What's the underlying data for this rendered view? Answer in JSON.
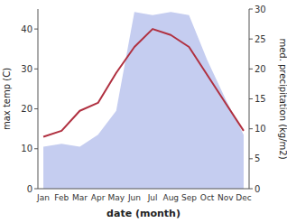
{
  "chart_data": {
    "type": "line",
    "categories": [
      "Jan",
      "Feb",
      "Mar",
      "Apr",
      "May",
      "Jun",
      "Jul",
      "Aug",
      "Sep",
      "Oct",
      "Nov",
      "Dec"
    ],
    "series": [
      {
        "type": "area",
        "axis": "y2",
        "color": "#c5cdf0",
        "values": [
          7.0,
          7.5,
          7.0,
          9.0,
          13.0,
          29.5,
          29.0,
          29.5,
          29.0,
          21.5,
          15.0,
          9.0
        ]
      },
      {
        "type": "line",
        "color": "#b03040",
        "values": [
          13.0,
          14.5,
          19.5,
          21.5,
          29.0,
          35.5,
          40.0,
          38.5,
          35.5,
          28.5,
          21.5,
          14.5
        ]
      }
    ],
    "xlabel": "date (month)",
    "ylabel": "max temp (C)",
    "y2label": "med. precipitation (kg/m2)",
    "ylim": [
      0,
      45
    ],
    "yticks": [
      0,
      10,
      20,
      30,
      40
    ],
    "y2lim": [
      0,
      30
    ],
    "y2ticks": [
      0,
      5,
      10,
      15,
      20,
      25,
      30
    ],
    "grid": false
  }
}
